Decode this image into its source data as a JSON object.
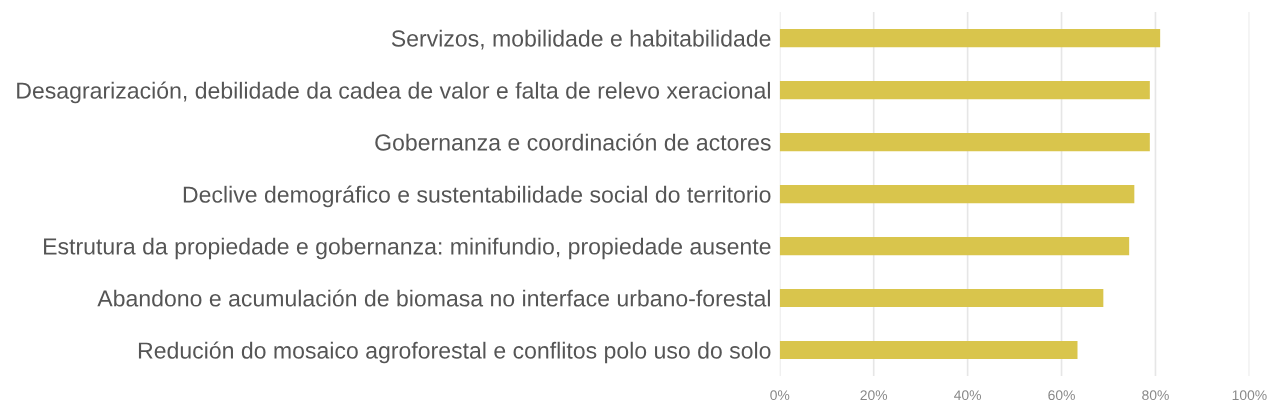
{
  "chart_data": {
    "type": "bar",
    "orientation": "horizontal",
    "categories": [
      "Servizos, mobilidade e habitabilidade",
      "Desagrarización, debilidade da cadea de valor e falta de relevo xeracional",
      "Gobernanza e coordinación de actores",
      "Declive demográfico e sustentabilidade social do territorio",
      "Estrutura da propiedade e gobernanza: minifundio, propiedade ausente",
      "Abandono e acumulación de biomasa no interface urbano-forestal",
      "Redución do mosaico agroforestal e conflitos polo uso do solo"
    ],
    "values": [
      81,
      78.8,
      78.8,
      75.5,
      74.4,
      68.9,
      63.4
    ],
    "color": "#d9c54c",
    "xlim": [
      0,
      100
    ],
    "xticks": [
      {
        "value": 0,
        "label": "0%"
      },
      {
        "value": 20,
        "label": "20%"
      },
      {
        "value": 40,
        "label": "40%"
      },
      {
        "value": 60,
        "label": "60%"
      },
      {
        "value": 80,
        "label": "80%"
      },
      {
        "value": 100,
        "label": "100%"
      }
    ],
    "grid": "x",
    "legend": false
  }
}
